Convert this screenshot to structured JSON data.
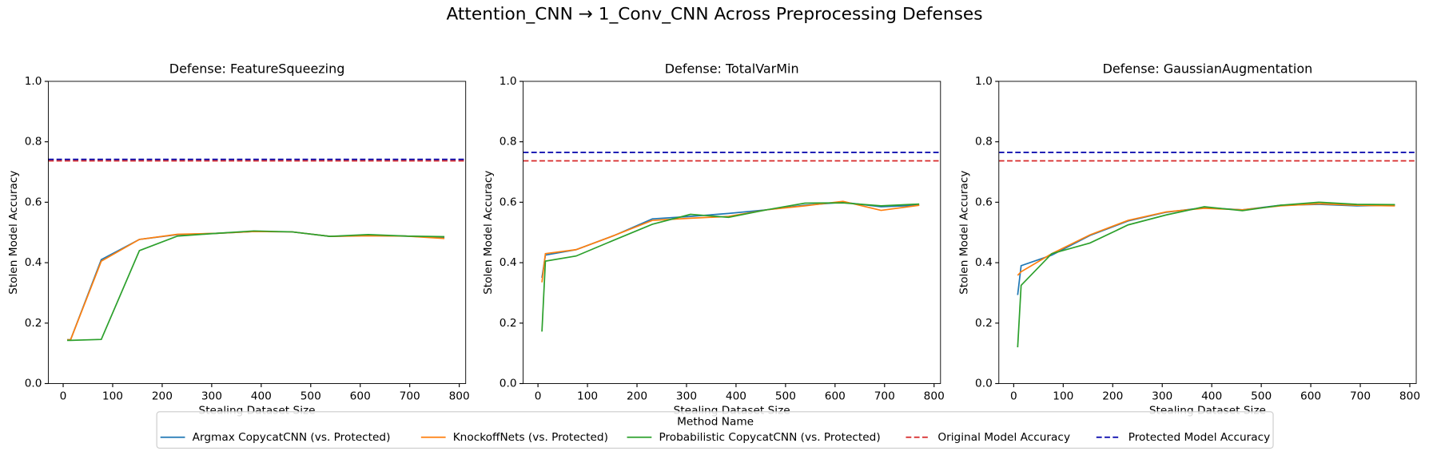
{
  "title": "Attention_CNN → 1_Conv_CNN Across Preprocessing Defenses",
  "legend": {
    "title": "Method Name",
    "position": "lower center"
  },
  "chart_data": [
    {
      "type": "line",
      "title": "Defense: FeatureSqueezing",
      "x_label": "Stealing Dataset Size",
      "y_label": "Stolen Model Accuracy",
      "x": [
        8,
        15,
        77,
        154,
        231,
        308,
        385,
        462,
        539,
        616,
        693,
        770
      ],
      "series": [
        {
          "name": "Argmax CopycatCNN (vs. Protected)",
          "color": "#1f77b4",
          "values": [
            0.145,
            0.145,
            0.41,
            0.477,
            0.493,
            0.497,
            0.503,
            0.502,
            0.487,
            0.49,
            0.488,
            0.483
          ]
        },
        {
          "name": "KnockoffNets (vs. Protected)",
          "color": "#ff7f0e",
          "values": [
            0.145,
            0.145,
            0.405,
            0.477,
            0.494,
            0.497,
            0.503,
            0.502,
            0.487,
            0.489,
            0.488,
            0.48
          ]
        },
        {
          "name": "Probabilistic CopycatCNN (vs. Protected)",
          "color": "#2ca02c",
          "values": [
            0.143,
            0.143,
            0.146,
            0.44,
            0.488,
            0.497,
            0.505,
            0.502,
            0.487,
            0.493,
            0.488,
            0.486
          ]
        }
      ],
      "reference_lines": [
        {
          "name": "Original Model Accuracy",
          "color": "#d62728",
          "value": 0.737
        },
        {
          "name": "Protected Model Accuracy",
          "color": "#0000aa",
          "value": 0.742
        }
      ],
      "xlim": [
        -30,
        813
      ],
      "ylim": [
        0,
        1
      ],
      "xticks": [
        0,
        100,
        200,
        300,
        400,
        500,
        600,
        700,
        800
      ],
      "yticks": [
        {
          "value": 0,
          "label": "0.0"
        },
        0.2,
        0.4,
        0.6,
        0.8,
        {
          "value": 1,
          "label": "1.0"
        }
      ]
    },
    {
      "type": "line",
      "title": "Defense: TotalVarMin",
      "x_label": "Stealing Dataset Size",
      "y_label": "Stolen Model Accuracy",
      "x": [
        8,
        15,
        77,
        154,
        231,
        308,
        385,
        462,
        539,
        616,
        693,
        770
      ],
      "series": [
        {
          "name": "Argmax CopycatCNN (vs. Protected)",
          "color": "#1f77b4",
          "values": [
            0.35,
            0.425,
            0.443,
            0.49,
            0.545,
            0.553,
            0.563,
            0.575,
            0.59,
            0.6,
            0.585,
            0.59
          ]
        },
        {
          "name": "KnockoffNets (vs. Protected)",
          "color": "#ff7f0e",
          "values": [
            0.335,
            0.43,
            0.443,
            0.49,
            0.54,
            0.547,
            0.553,
            0.575,
            0.588,
            0.603,
            0.573,
            0.59
          ]
        },
        {
          "name": "Probabilistic CopycatCNN (vs. Protected)",
          "color": "#2ca02c",
          "values": [
            0.172,
            0.405,
            0.422,
            0.475,
            0.527,
            0.56,
            0.55,
            0.575,
            0.597,
            0.598,
            0.588,
            0.594
          ]
        }
      ],
      "reference_lines": [
        {
          "name": "Original Model Accuracy",
          "color": "#d62728",
          "value": 0.737
        },
        {
          "name": "Protected Model Accuracy",
          "color": "#0000aa",
          "value": 0.765
        }
      ],
      "xlim": [
        -30,
        813
      ],
      "ylim": [
        0,
        1
      ],
      "xticks": [
        0,
        100,
        200,
        300,
        400,
        500,
        600,
        700,
        800
      ],
      "yticks": [
        {
          "value": 0,
          "label": "0.0"
        },
        0.2,
        0.4,
        0.6,
        0.8,
        {
          "value": 1,
          "label": "1.0"
        }
      ]
    },
    {
      "type": "line",
      "title": "Defense: GaussianAugmentation",
      "x_label": "Stealing Dataset Size",
      "y_label": "Stolen Model Accuracy",
      "x": [
        8,
        15,
        77,
        154,
        231,
        308,
        385,
        462,
        539,
        616,
        693,
        770
      ],
      "series": [
        {
          "name": "Argmax CopycatCNN (vs. Protected)",
          "color": "#1f77b4",
          "values": [
            0.293,
            0.39,
            0.425,
            0.49,
            0.538,
            0.567,
            0.582,
            0.575,
            0.59,
            0.593,
            0.588,
            0.59
          ]
        },
        {
          "name": "KnockoffNets (vs. Protected)",
          "color": "#ff7f0e",
          "values": [
            0.358,
            0.37,
            0.43,
            0.492,
            0.54,
            0.568,
            0.58,
            0.575,
            0.588,
            0.595,
            0.59,
            0.588
          ]
        },
        {
          "name": "Probabilistic CopycatCNN (vs. Protected)",
          "color": "#2ca02c",
          "values": [
            0.12,
            0.325,
            0.43,
            0.465,
            0.525,
            0.558,
            0.585,
            0.572,
            0.59,
            0.6,
            0.593,
            0.592
          ]
        }
      ],
      "reference_lines": [
        {
          "name": "Original Model Accuracy",
          "color": "#d62728",
          "value": 0.737
        },
        {
          "name": "Protected Model Accuracy",
          "color": "#0000aa",
          "value": 0.765
        }
      ],
      "xlim": [
        -30,
        813
      ],
      "ylim": [
        0,
        1
      ],
      "xticks": [
        0,
        100,
        200,
        300,
        400,
        500,
        600,
        700,
        800
      ],
      "yticks": [
        {
          "value": 0,
          "label": "0.0"
        },
        0.2,
        0.4,
        0.6,
        0.8,
        {
          "value": 1,
          "label": "1.0"
        }
      ]
    }
  ]
}
